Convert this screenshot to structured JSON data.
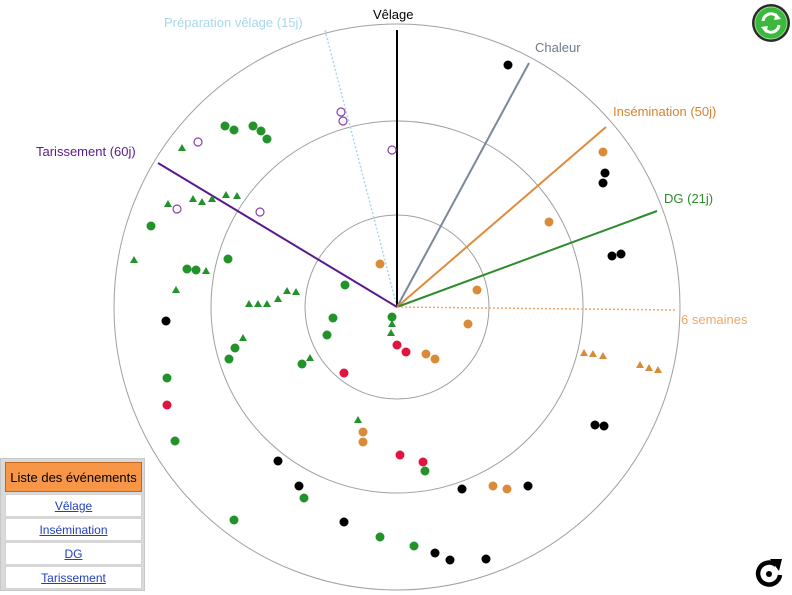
{
  "wheel": {
    "spokes": [
      {
        "id": "velage",
        "label": "Vêlage",
        "color": "#000000",
        "dashed": false
      },
      {
        "id": "chaleur",
        "label": "Chaleur",
        "color": "#7a8899",
        "dashed": false
      },
      {
        "id": "insemination",
        "label": "Insémination (50j)",
        "color": "#e08a3c",
        "dashed": false
      },
      {
        "id": "dg",
        "label": "DG (21j)",
        "color": "#2e8b2e",
        "dashed": false
      },
      {
        "id": "six-semaines",
        "label": "6 semaines",
        "color": "#f0a868",
        "dashed": true
      },
      {
        "id": "tarissement",
        "label": "Tarissement (60j)",
        "color": "#5b1a8c",
        "dashed": false
      },
      {
        "id": "preparation-velage",
        "label": "Préparation vêlage (15j)",
        "color": "#a8d8ea",
        "dashed": true
      }
    ],
    "legend_colors": {
      "black": "#000000",
      "green": "#22922a",
      "orange": "#d98b3a",
      "red": "#e0143c",
      "purple": "#8b3fb0"
    }
  },
  "events_panel": {
    "header": "Liste des événements",
    "links": [
      "Vêlage",
      "Insémination",
      "DG",
      "Tarissement"
    ]
  },
  "buttons": {
    "refresh_icon": "refresh-icon",
    "rotate_icon": "rotate-icon"
  }
}
